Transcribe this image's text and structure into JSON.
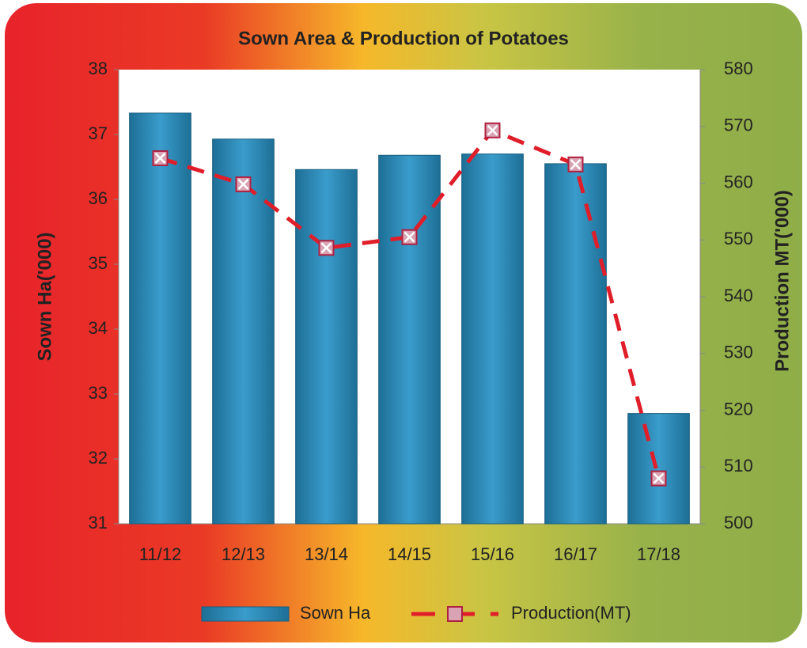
{
  "chart_data": {
    "type": "bar_line",
    "title": "Sown Area & Production of Potatoes",
    "categories": [
      "11/12",
      "12/13",
      "13/14",
      "14/15",
      "15/16",
      "16/17",
      "17/18"
    ],
    "series": [
      {
        "name": "Sown Ha",
        "type": "bar",
        "color": "#2e8cb8",
        "values": [
          37.33,
          36.93,
          36.46,
          36.68,
          36.7,
          36.55,
          32.7
        ]
      },
      {
        "name": "Production(MT)",
        "type": "line",
        "axis": "y2",
        "color": "#e01e2a",
        "values": [
          564.4,
          559.8,
          548.6,
          550.5,
          569.3,
          563.3,
          508
        ]
      }
    ],
    "ylabel": "Sown Ha('000)",
    "y2label": "Production MT('000)",
    "ylim": [
      31,
      38
    ],
    "yticks": [
      31,
      32,
      33,
      34,
      35,
      36,
      37,
      38
    ],
    "y2lim": [
      500,
      580
    ],
    "y2ticks": [
      500,
      510,
      520,
      530,
      540,
      550,
      560,
      570,
      580
    ],
    "legend": "bottom"
  }
}
